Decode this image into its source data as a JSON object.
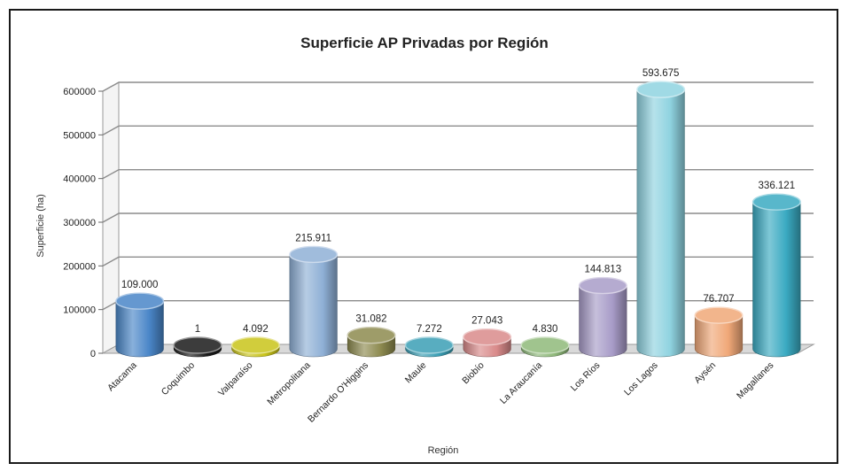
{
  "chart_data": {
    "type": "bar",
    "title": "Superficie AP Privadas por Región",
    "xlabel": "Región",
    "ylabel": "Superficie (ha)",
    "ylim": [
      0,
      600000
    ],
    "yticks": [
      "0",
      "100000",
      "200000",
      "300000",
      "400000",
      "500000",
      "600000"
    ],
    "grid": true,
    "categories": [
      "Atacama",
      "Coquimbo",
      "Valparaíso",
      "Metropolitana",
      "Bernardo O'Higgins",
      "Maule",
      "Biobío",
      "La Araucanía",
      "Los Ríos",
      "Los Lagos",
      "Aysén",
      "Magallanes"
    ],
    "values": [
      109000,
      1,
      4092,
      215911,
      31082,
      7272,
      27043,
      4830,
      144813,
      593675,
      76707,
      336121
    ],
    "data_labels": [
      "109.000",
      "1",
      "4.092",
      "215.911",
      "31.082",
      "7.272",
      "27.043",
      "4.830",
      "144.813",
      "593.675",
      "76.707",
      "336.121"
    ],
    "colors": [
      "#4a86c8",
      "#1a1a1a",
      "#c9c419",
      "#8fb0d6",
      "#8d8a4f",
      "#3a9fb5",
      "#d98a8a",
      "#8fb97a",
      "#a89cc8",
      "#8fd3e0",
      "#f0a878",
      "#3aaac2"
    ]
  }
}
